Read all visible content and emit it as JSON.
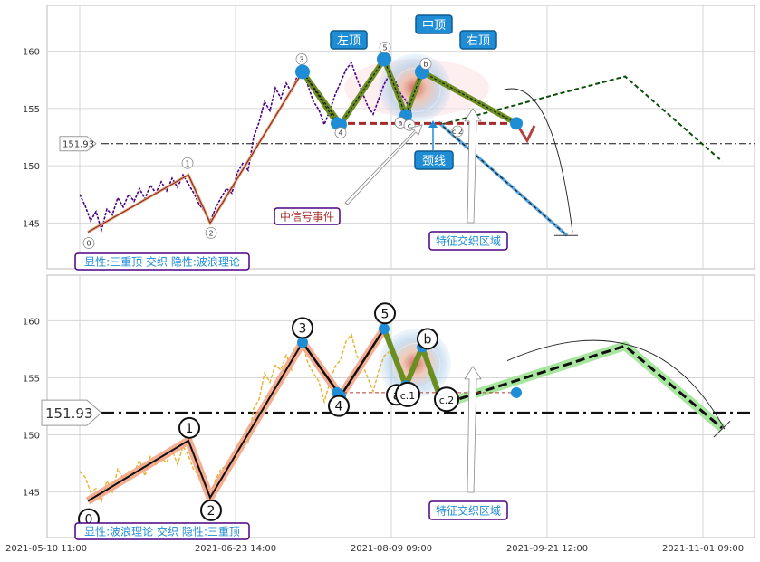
{
  "chart_data": {
    "type": "line",
    "x_tick_labels": [
      "2021-05-10 11:00",
      "2021-06-23 14:00",
      "2021-08-09 09:00",
      "2021-09-21 12:00",
      "2021-11-01 09:00"
    ],
    "panels": [
      {
        "id": "top",
        "ylim": [
          141,
          164
        ],
        "yticks": [
          145,
          150,
          155,
          160
        ],
        "price_color": "#4b0082",
        "level_tag": "151.93",
        "level_value": 151.93,
        "price_series": [
          [
            0,
            147.5
          ],
          [
            1,
            146.5
          ],
          [
            2,
            145.2
          ],
          [
            3,
            146.0
          ],
          [
            4,
            144.4
          ],
          [
            5,
            146.2
          ],
          [
            6,
            145.7
          ],
          [
            7,
            147.2
          ],
          [
            8,
            146.4
          ],
          [
            9,
            147.5
          ],
          [
            10,
            146.9
          ],
          [
            11,
            148.0
          ],
          [
            12,
            147.1
          ],
          [
            13,
            148.3
          ],
          [
            14,
            147.6
          ],
          [
            15,
            148.6
          ],
          [
            16,
            147.8
          ],
          [
            17,
            148.9
          ],
          [
            18,
            148.1
          ],
          [
            19,
            149.2
          ],
          [
            20,
            148.4
          ],
          [
            21,
            147.6
          ],
          [
            22,
            146.6
          ],
          [
            23,
            146.0
          ],
          [
            24,
            145.1
          ],
          [
            25,
            146.3
          ],
          [
            26,
            147.2
          ],
          [
            27,
            148.0
          ],
          [
            28,
            147.6
          ],
          [
            29,
            149.4
          ],
          [
            30,
            150.2
          ],
          [
            31,
            149.6
          ],
          [
            32,
            152.5
          ],
          [
            33,
            153.8
          ],
          [
            34,
            155.6
          ],
          [
            35,
            154.8
          ],
          [
            36,
            156.8
          ],
          [
            37,
            155.9
          ],
          [
            38,
            157.2
          ],
          [
            39,
            156.4
          ],
          [
            40,
            157.8
          ],
          [
            41,
            158.2
          ],
          [
            42,
            157.0
          ],
          [
            43,
            155.6
          ],
          [
            44,
            154.9
          ],
          [
            45,
            153.6
          ],
          [
            46,
            154.8
          ],
          [
            47,
            156.2
          ],
          [
            48,
            157.3
          ],
          [
            49,
            158.4
          ],
          [
            50,
            159.0
          ],
          [
            51,
            157.6
          ],
          [
            52,
            156.4
          ],
          [
            53,
            155.2
          ],
          [
            54,
            154.5
          ],
          [
            55,
            155.8
          ],
          [
            56,
            157.1
          ],
          [
            57,
            158.0
          ],
          [
            58,
            157.5
          ],
          [
            59,
            156.3
          ],
          [
            60,
            155.7
          ],
          [
            61,
            154.6
          ]
        ],
        "wave_points": [
          {
            "label": "0",
            "x": 1.5,
            "y": 144.2
          },
          {
            "label": "1",
            "x": 20,
            "y": 149.2
          },
          {
            "label": "2",
            "x": 24,
            "y": 145.0
          },
          {
            "label": "3",
            "x": 41,
            "y": 158.2
          },
          {
            "label": "4",
            "x": 48,
            "y": 153.6
          },
          {
            "label": "5",
            "x": 56,
            "y": 159.3
          },
          {
            "label": "a",
            "x": 60,
            "y": 154.4
          },
          {
            "label": "b",
            "x": 63,
            "y": 158.2
          },
          {
            "label": "c",
            "x": 66,
            "y": 153.7
          },
          {
            "label": "c.2",
            "x": 67.5,
            "y": 152.3
          }
        ],
        "events": {
          "left_top": "左顶",
          "mid_top": "中顶",
          "right_top": "右顶",
          "neckline": "颈线",
          "mid_event": "中信号事件",
          "zone": "特征交织区域",
          "summary": "显性:三重顶 交织 隐性:波浪理论"
        }
      },
      {
        "id": "bottom",
        "ylim": [
          141,
          164
        ],
        "yticks": [
          145,
          150,
          155,
          160
        ],
        "price_color": "#e6a817",
        "level_tag": "151.93",
        "level_value": 151.93,
        "wave_points": [
          {
            "label": "0",
            "x": 1.5,
            "y": 144.2
          },
          {
            "label": "1",
            "x": 20,
            "y": 149.5
          },
          {
            "label": "2",
            "x": 24,
            "y": 144.5
          },
          {
            "label": "3",
            "x": 41,
            "y": 158.1
          },
          {
            "label": "4",
            "x": 48,
            "y": 153.4
          },
          {
            "label": "5",
            "x": 56,
            "y": 159.3
          },
          {
            "label": "a",
            "x": 60,
            "y": 154.3
          },
          {
            "label": "b",
            "x": 63,
            "y": 157.7
          },
          {
            "label": "c.1",
            "x": 66,
            "y": 153.7
          },
          {
            "label": "c.2",
            "x": 67.5,
            "y": 152.8
          }
        ],
        "events": {
          "zone": "特征交织区域",
          "summary": "显性:波浪理论 交织 隐性:三重顶"
        }
      }
    ]
  }
}
